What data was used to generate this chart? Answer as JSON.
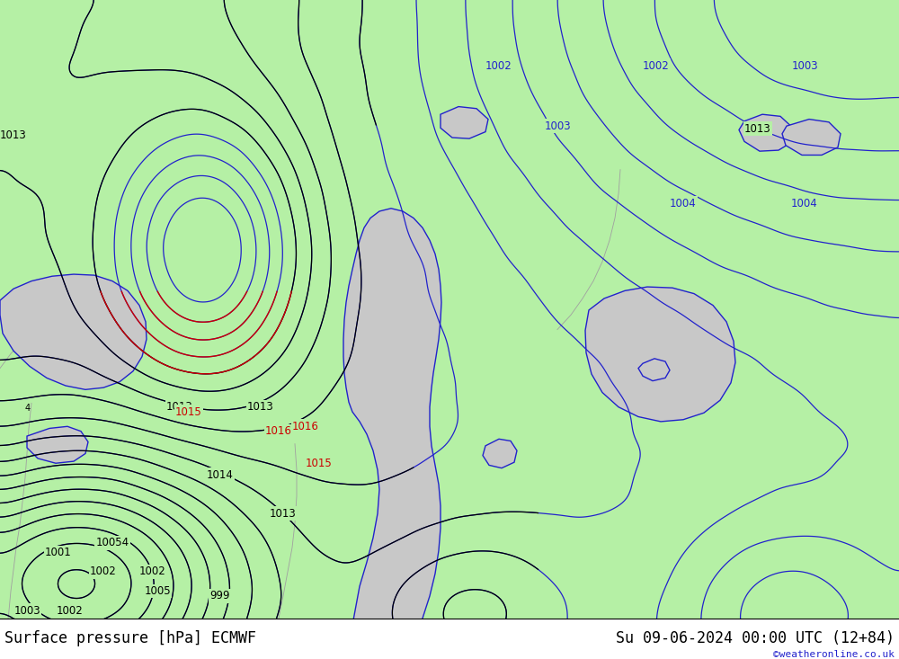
{
  "title_left": "Surface pressure [hPa] ECMWF",
  "title_right": "Su 09-06-2024 00:00 UTC (12+84)",
  "watermark": "©weatheronline.co.uk",
  "bg_color": "#b5f0a5",
  "water_color": "#c8c8c8",
  "water_edge_color": "#2222cc",
  "contour_black": "#000000",
  "contour_blue": "#2222cc",
  "contour_red": "#cc0000",
  "geo_outline_color": "#a0a0a0",
  "label_fontsize": 8.5,
  "title_fontsize": 12,
  "watermark_fontsize": 8,
  "watermark_color": "#2222cc",
  "figsize": [
    10.0,
    7.33
  ],
  "dpi": 100
}
